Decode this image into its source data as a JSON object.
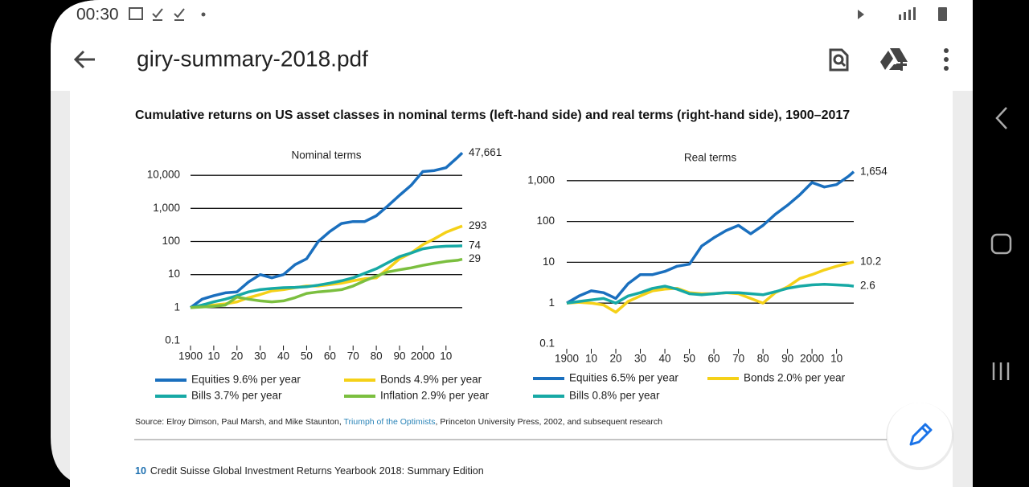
{
  "status_bar": {
    "time": "00:30"
  },
  "app_bar": {
    "title": "giry-summary-2018.pdf"
  },
  "document": {
    "figure_title": "Cumulative returns on US asset classes in nominal terms (left-hand side) and real terms (right-hand side), 1900–2017",
    "source": {
      "prefix": "Source: Elroy Dimson, Paul Marsh, and Mike Staunton, ",
      "link": "Triumph of the Optimists",
      "suffix": ", Princeton University Press, 2002, and subsequent research"
    },
    "footer": {
      "page": "10",
      "text": "Credit Suisse Global Investment Returns Yearbook 2018: Summary Edition"
    }
  },
  "chart_data": [
    {
      "type": "line",
      "title": "Nominal terms",
      "log_y": true,
      "x": [
        1900,
        1905,
        1910,
        1915,
        1920,
        1925,
        1930,
        1935,
        1940,
        1945,
        1950,
        1955,
        1960,
        1965,
        1970,
        1975,
        1980,
        1985,
        1990,
        1995,
        2000,
        2005,
        2010,
        2015,
        2017
      ],
      "xlim": [
        1900,
        2017
      ],
      "xticks": [
        1900,
        {
          "value": 1910,
          "label": "10"
        },
        {
          "value": 1920,
          "label": "20"
        },
        {
          "value": 1930,
          "label": "30"
        },
        {
          "value": 1940,
          "label": "40"
        },
        {
          "value": 1950,
          "label": "50"
        },
        {
          "value": 1960,
          "label": "60"
        },
        {
          "value": 1970,
          "label": "70"
        },
        {
          "value": 1980,
          "label": "80"
        },
        {
          "value": 1990,
          "label": "90"
        },
        2000,
        {
          "value": 2010,
          "label": "10"
        }
      ],
      "ylim": [
        0.1,
        100000
      ],
      "yticks": [
        0.1,
        1,
        10,
        100,
        {
          "value": 1000,
          "label": "1,000"
        },
        {
          "value": 10000,
          "label": "10,000"
        }
      ],
      "series": [
        {
          "name": "Equities  9.6% per year",
          "color": "#1a6fbe",
          "values": [
            1,
            1.8,
            2.3,
            2.8,
            3,
            6,
            10,
            8,
            10,
            20,
            30,
            100,
            200,
            350,
            400,
            400,
            600,
            1200,
            2500,
            5000,
            13000,
            14000,
            17000,
            35000,
            47661
          ],
          "value_labels": [
            null,
            null,
            null,
            null,
            null,
            null,
            null,
            null,
            null,
            null,
            null,
            null,
            null,
            null,
            null,
            null,
            null,
            null,
            null,
            null,
            null,
            null,
            null,
            null,
            "47,661"
          ]
        },
        {
          "name": "Bonds  4.9% per year",
          "color": "#f5d118",
          "values": [
            1,
            1.1,
            1.2,
            1.3,
            1.5,
            2,
            2.5,
            3.2,
            3.5,
            4,
            4.5,
            4.5,
            5,
            5.5,
            6.5,
            7.5,
            8,
            15,
            30,
            45,
            80,
            120,
            190,
            260,
            293
          ],
          "value_labels": [
            null,
            null,
            null,
            null,
            null,
            null,
            null,
            null,
            null,
            null,
            null,
            null,
            null,
            null,
            null,
            null,
            null,
            null,
            null,
            null,
            null,
            null,
            null,
            null,
            "293"
          ]
        },
        {
          "name": "Bills  3.7% per year",
          "color": "#17a9a5",
          "values": [
            1,
            1.2,
            1.5,
            1.8,
            2.3,
            3,
            3.5,
            3.8,
            4,
            4.1,
            4.3,
            4.8,
            5.5,
            6.5,
            8,
            11,
            15,
            23,
            35,
            45,
            60,
            68,
            72,
            73,
            74
          ],
          "value_labels": [
            null,
            null,
            null,
            null,
            null,
            null,
            null,
            null,
            null,
            null,
            null,
            null,
            null,
            null,
            null,
            null,
            null,
            null,
            null,
            null,
            null,
            null,
            null,
            null,
            "74"
          ]
        },
        {
          "name": "Inflation  2.9% per year",
          "color": "#7bbf3f",
          "values": [
            1,
            1.05,
            1.1,
            1.2,
            2.1,
            1.8,
            1.6,
            1.5,
            1.6,
            2,
            2.7,
            3,
            3.2,
            3.5,
            4.5,
            6.5,
            9,
            12,
            14,
            16,
            19,
            22,
            25,
            27,
            29
          ],
          "value_labels": [
            null,
            null,
            null,
            null,
            null,
            null,
            null,
            null,
            null,
            null,
            null,
            null,
            null,
            null,
            null,
            null,
            null,
            null,
            null,
            null,
            null,
            null,
            null,
            null,
            "29"
          ]
        }
      ]
    },
    {
      "type": "line",
      "title": "Real terms",
      "log_y": true,
      "x": [
        1900,
        1905,
        1910,
        1915,
        1920,
        1925,
        1930,
        1935,
        1940,
        1945,
        1950,
        1955,
        1960,
        1965,
        1970,
        1975,
        1980,
        1985,
        1990,
        1995,
        2000,
        2005,
        2010,
        2015,
        2017
      ],
      "xlim": [
        1900,
        2017
      ],
      "xticks": [
        1900,
        {
          "value": 1910,
          "label": "10"
        },
        {
          "value": 1920,
          "label": "20"
        },
        {
          "value": 1930,
          "label": "30"
        },
        {
          "value": 1940,
          "label": "40"
        },
        {
          "value": 1950,
          "label": "50"
        },
        {
          "value": 1960,
          "label": "60"
        },
        {
          "value": 1970,
          "label": "70"
        },
        {
          "value": 1980,
          "label": "80"
        },
        {
          "value": 1990,
          "label": "90"
        },
        2000,
        {
          "value": 2010,
          "label": "10"
        }
      ],
      "ylim": [
        0.1,
        10000
      ],
      "yticks": [
        0.1,
        1,
        10,
        100,
        {
          "value": 1000,
          "label": "1,000"
        }
      ],
      "series": [
        {
          "name": "Equities  6.5% per year",
          "color": "#1a6fbe",
          "values": [
            1,
            1.5,
            2,
            1.8,
            1.3,
            3,
            5,
            5,
            6,
            8,
            9,
            25,
            40,
            60,
            80,
            50,
            80,
            150,
            250,
            450,
            900,
            700,
            800,
            1300,
            1654
          ],
          "value_labels": [
            null,
            null,
            null,
            null,
            null,
            null,
            null,
            null,
            null,
            null,
            null,
            null,
            null,
            null,
            null,
            null,
            null,
            null,
            null,
            null,
            null,
            null,
            null,
            null,
            "1,654"
          ]
        },
        {
          "name": "Bonds 2.0% per year",
          "color": "#f5d118",
          "values": [
            1,
            1.05,
            1,
            0.9,
            0.6,
            1.1,
            1.5,
            2,
            2.2,
            2.3,
            1.8,
            1.7,
            1.7,
            1.8,
            1.7,
            1.3,
            1.0,
            1.8,
            2.5,
            4,
            5,
            6.5,
            8,
            9.5,
            10.2
          ],
          "value_labels": [
            null,
            null,
            null,
            null,
            null,
            null,
            null,
            null,
            null,
            null,
            null,
            null,
            null,
            null,
            null,
            null,
            null,
            null,
            null,
            null,
            null,
            null,
            null,
            null,
            "10.2"
          ]
        },
        {
          "name": "Bills 0.8% per year",
          "color": "#17a9a5",
          "values": [
            1,
            1.1,
            1.2,
            1.3,
            1,
            1.5,
            1.8,
            2.3,
            2.6,
            2.2,
            1.7,
            1.6,
            1.7,
            1.8,
            1.8,
            1.7,
            1.6,
            1.9,
            2.3,
            2.6,
            2.8,
            2.9,
            2.8,
            2.7,
            2.6
          ],
          "value_labels": [
            null,
            null,
            null,
            null,
            null,
            null,
            null,
            null,
            null,
            null,
            null,
            null,
            null,
            null,
            null,
            null,
            null,
            null,
            null,
            null,
            null,
            null,
            null,
            null,
            "2.6"
          ]
        }
      ]
    }
  ]
}
